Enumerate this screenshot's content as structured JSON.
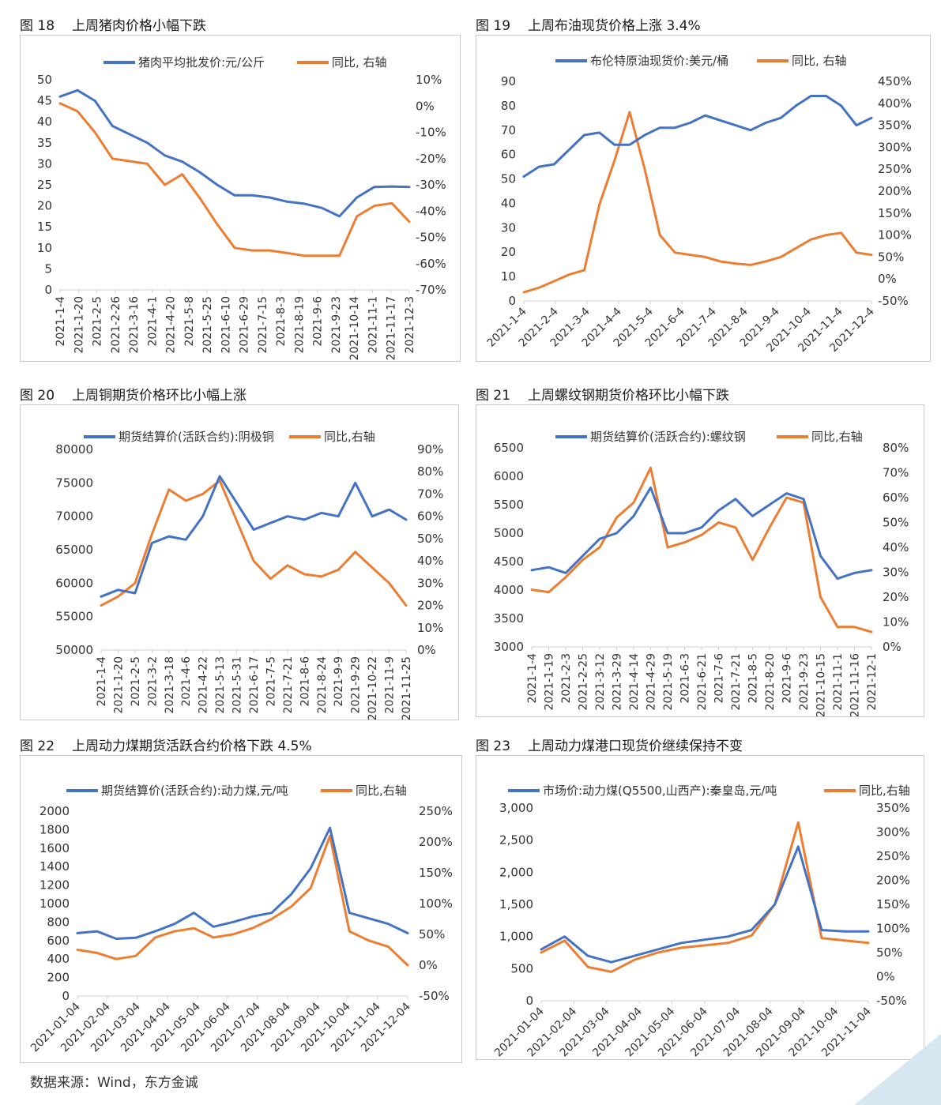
{
  "source_note": "数据来源：Wind，东方金诚",
  "colors": {
    "blue": "#4472C4",
    "orange": "#ED7D31",
    "axis": "#d0d0d0",
    "text": "#333333",
    "corner": "#d6e7f1"
  },
  "chart_data": [
    {
      "id": "c18",
      "type": "line",
      "fig": "图 18",
      "title": "上周猪肉价格小幅下跌",
      "legend": [
        "猪肉平均批发价:元/公斤",
        "同比, 右轴"
      ],
      "yleft": {
        "min": 0,
        "max": 50,
        "ticks": [
          "0",
          "5",
          "10",
          "15",
          "20",
          "25",
          "30",
          "35",
          "40",
          "45",
          "50"
        ]
      },
      "yright": {
        "min": -70,
        "max": 10,
        "ticks": [
          "-70%",
          "-60%",
          "-50%",
          "-40%",
          "-30%",
          "-20%",
          "-10%",
          "0%",
          "10%"
        ]
      },
      "xlabels": [
        "2021-1-4",
        "2021-1-20",
        "2021-2-5",
        "2021-2-26",
        "2021-3-16",
        "2021-4-1",
        "2021-4-20",
        "2021-5-8",
        "2021-5-25",
        "2021-6-10",
        "2021-6-29",
        "2021-7-15",
        "2021-8-3",
        "2021-8-19",
        "2021-9-6",
        "2021-9-23",
        "2021-10-14",
        "2021-11-1",
        "2021-11-17",
        "2021-12-3"
      ],
      "xrotate": -90,
      "series": [
        {
          "name": "猪肉平均批发价:元/公斤",
          "axis": "left",
          "values": [
            46.0,
            47.5,
            45.0,
            39.0,
            37.0,
            35.0,
            32.0,
            30.5,
            28.0,
            25.0,
            22.5,
            22.5,
            22.0,
            21.0,
            20.5,
            19.5,
            17.5,
            22.0,
            24.5,
            24.6,
            24.5
          ]
        },
        {
          "name": "同比, 右轴",
          "axis": "right",
          "values": [
            1.0,
            -2.0,
            -10.0,
            -20.0,
            -21.0,
            -22.0,
            -30.0,
            -26.0,
            -35.0,
            -45.0,
            -54.0,
            -55.0,
            -55.0,
            -56.0,
            -57.0,
            -57.0,
            -57.0,
            -42.0,
            -38.0,
            -37.0,
            -44.0
          ]
        }
      ]
    },
    {
      "id": "c19",
      "type": "line",
      "fig": "图 19",
      "title": "上周布油现货价格上涨 3.4%",
      "legend": [
        "布伦特原油现货价:美元/桶",
        "同比, 右轴"
      ],
      "yleft": {
        "min": 0,
        "max": 90,
        "ticks": [
          "0",
          "10",
          "20",
          "30",
          "40",
          "50",
          "60",
          "70",
          "80",
          "90"
        ]
      },
      "yright": {
        "min": -50,
        "max": 450,
        "ticks": [
          "-50%",
          "0%",
          "50%",
          "100%",
          "150%",
          "200%",
          "250%",
          "300%",
          "350%",
          "400%",
          "450%"
        ]
      },
      "xlabels": [
        "2021-1-4",
        "2021-2-4",
        "2021-3-4",
        "2021-4-4",
        "2021-5-4",
        "2021-6-4",
        "2021-7-4",
        "2021-8-4",
        "2021-9-4",
        "2021-10-4",
        "2021-11-4",
        "2021-12-4"
      ],
      "xrotate": -45,
      "series": [
        {
          "name": "布伦特原油现货价:美元/桶",
          "axis": "left",
          "values": [
            51,
            55,
            56,
            62,
            68,
            69,
            64,
            64,
            68,
            71,
            71,
            73,
            76,
            74,
            72,
            70,
            73,
            75,
            80,
            84,
            84,
            80,
            72,
            75
          ]
        },
        {
          "name": "同比, 右轴",
          "axis": "right",
          "values": [
            -30,
            -20,
            -5,
            10,
            20,
            170,
            270,
            380,
            250,
            100,
            60,
            55,
            50,
            40,
            35,
            32,
            40,
            50,
            70,
            90,
            100,
            105,
            60,
            55
          ]
        }
      ]
    },
    {
      "id": "c20",
      "type": "line",
      "fig": "图 20",
      "title": "上周铜期货价格环比小幅上涨",
      "legend": [
        "期货结算价(活跃合约):阴极铜",
        "同比,右轴"
      ],
      "yleft": {
        "min": 50000,
        "max": 80000,
        "ticks": [
          "50000",
          "55000",
          "60000",
          "65000",
          "70000",
          "75000",
          "80000"
        ]
      },
      "yright": {
        "min": 0,
        "max": 90,
        "ticks": [
          "0%",
          "10%",
          "20%",
          "30%",
          "40%",
          "50%",
          "60%",
          "70%",
          "80%",
          "90%"
        ]
      },
      "xlabels": [
        "2021-1-4",
        "2021-1-20",
        "2021-2-5",
        "2021-3-2",
        "2021-3-18",
        "2021-4-6",
        "2021-4-22",
        "2021-5-13",
        "2021-5-31",
        "2021-6-17",
        "2021-7-5",
        "2021-7-21",
        "2021-8-6",
        "2021-8-24",
        "2021-9-9",
        "2021-9-29",
        "2021-10-22",
        "2021-11-9",
        "2021-11-25"
      ],
      "xrotate": -90,
      "series": [
        {
          "name": "期货结算价(活跃合约):阴极铜",
          "axis": "left",
          "values": [
            58000,
            59000,
            58500,
            66000,
            67000,
            66500,
            70000,
            76000,
            72000,
            68000,
            69000,
            70000,
            69500,
            70500,
            70000,
            75000,
            70000,
            71000,
            69500
          ]
        },
        {
          "name": "同比,右轴",
          "axis": "right",
          "values": [
            20,
            24,
            30,
            52,
            72,
            67,
            70,
            76,
            58,
            40,
            32,
            38,
            34,
            33,
            36,
            44,
            37,
            30,
            20
          ]
        }
      ]
    },
    {
      "id": "c21",
      "type": "line",
      "fig": "图 21",
      "title": "上周螺纹钢期货价格环比小幅下跌",
      "legend": [
        "期货结算价(活跃合约):螺纹钢",
        "同比,右轴"
      ],
      "yleft": {
        "min": 3000,
        "max": 6500,
        "ticks": [
          "3000",
          "3500",
          "4000",
          "4500",
          "5000",
          "5500",
          "6000",
          "6500"
        ]
      },
      "yright": {
        "min": 0,
        "max": 80,
        "ticks": [
          "0%",
          "10%",
          "20%",
          "30%",
          "40%",
          "50%",
          "60%",
          "70%",
          "80%"
        ]
      },
      "xlabels": [
        "2021-1-4",
        "2021-1-19",
        "2021-2-3",
        "2021-2-25",
        "2021-3-12",
        "2021-3-29",
        "2021-4-14",
        "2021-4-29",
        "2021-5-19",
        "2021-6-3",
        "2021-6-21",
        "2021-7-6",
        "2021-7-21",
        "2021-8-5",
        "2021-8-20",
        "2021-9-6",
        "2021-9-23",
        "2021-10-15",
        "2021-11-1",
        "2021-11-16",
        "2021-12-1"
      ],
      "xrotate": -90,
      "series": [
        {
          "name": "期货结算价(活跃合约):螺纹钢",
          "axis": "left",
          "values": [
            4350,
            4400,
            4300,
            4600,
            4900,
            5000,
            5300,
            5800,
            5000,
            5000,
            5100,
            5400,
            5600,
            5300,
            5500,
            5700,
            5600,
            4600,
            4200,
            4300,
            4350
          ]
        },
        {
          "name": "同比,右轴",
          "axis": "right",
          "values": [
            23,
            22,
            28,
            35,
            40,
            52,
            58,
            72,
            40,
            42,
            45,
            50,
            48,
            35,
            48,
            60,
            58,
            20,
            8,
            8,
            6
          ]
        }
      ]
    },
    {
      "id": "c22",
      "type": "line",
      "fig": "图 22",
      "title": "上周动力煤期货活跃合约价格下跌 4.5%",
      "legend": [
        "期货结算价(活跃合约):动力煤,元/吨",
        "同比,右轴"
      ],
      "yleft": {
        "min": 0,
        "max": 2000,
        "ticks": [
          "0",
          "200",
          "400",
          "600",
          "800",
          "1000",
          "1200",
          "1400",
          "1600",
          "1800",
          "2000"
        ]
      },
      "yright": {
        "min": -50,
        "max": 250,
        "ticks": [
          "-50%",
          "0%",
          "50%",
          "100%",
          "150%",
          "200%",
          "250%"
        ]
      },
      "xlabels": [
        "2021-01-04",
        "2021-02-04",
        "2021-03-04",
        "2021-04-04",
        "2021-05-04",
        "2021-06-04",
        "2021-07-04",
        "2021-08-04",
        "2021-09-04",
        "2021-10-04",
        "2021-11-04",
        "2021-12-04"
      ],
      "xrotate": -45,
      "series": [
        {
          "name": "期货结算价(活跃合约):动力煤,元/吨",
          "axis": "left",
          "values": [
            680,
            700,
            620,
            630,
            700,
            780,
            900,
            750,
            800,
            860,
            900,
            1100,
            1380,
            1820,
            900,
            840,
            780,
            680
          ]
        },
        {
          "name": "同比,右轴",
          "axis": "right",
          "values": [
            25,
            20,
            10,
            15,
            45,
            55,
            60,
            45,
            50,
            60,
            75,
            95,
            125,
            210,
            55,
            40,
            30,
            0
          ]
        }
      ]
    },
    {
      "id": "c23",
      "type": "line",
      "fig": "图 23",
      "title": "上周动力煤港口现货价继续保持不变",
      "legend": [
        "市场价:动力煤(Q5500,山西产):秦皇岛,元/吨",
        "同比,右轴"
      ],
      "yleft": {
        "min": 0,
        "max": 3000,
        "ticks": [
          "0",
          "500",
          "1,000",
          "1,500",
          "2,000",
          "2,500",
          "3,000"
        ]
      },
      "yright": {
        "min": -50,
        "max": 350,
        "ticks": [
          "-50%",
          "0%",
          "50%",
          "100%",
          "150%",
          "200%",
          "250%",
          "300%",
          "350%"
        ]
      },
      "xlabels": [
        "2021-01-04",
        "2021-02-04",
        "2021-03-04",
        "2021-04-04",
        "2021-05-04",
        "2021-06-04",
        "2021-07-04",
        "2021-08-04",
        "2021-09-04",
        "2021-10-04",
        "2021-11-04"
      ],
      "xrotate": -45,
      "series": [
        {
          "name": "市场价:动力煤(Q5500,山西产):秦皇岛,元/吨",
          "axis": "left",
          "values": [
            800,
            1000,
            700,
            600,
            700,
            800,
            900,
            950,
            1000,
            1100,
            1500,
            2400,
            1100,
            1080,
            1080
          ]
        },
        {
          "name": "同比,右轴",
          "axis": "right",
          "values": [
            50,
            75,
            20,
            10,
            35,
            50,
            60,
            65,
            70,
            85,
            150,
            320,
            80,
            75,
            70
          ]
        }
      ]
    }
  ]
}
